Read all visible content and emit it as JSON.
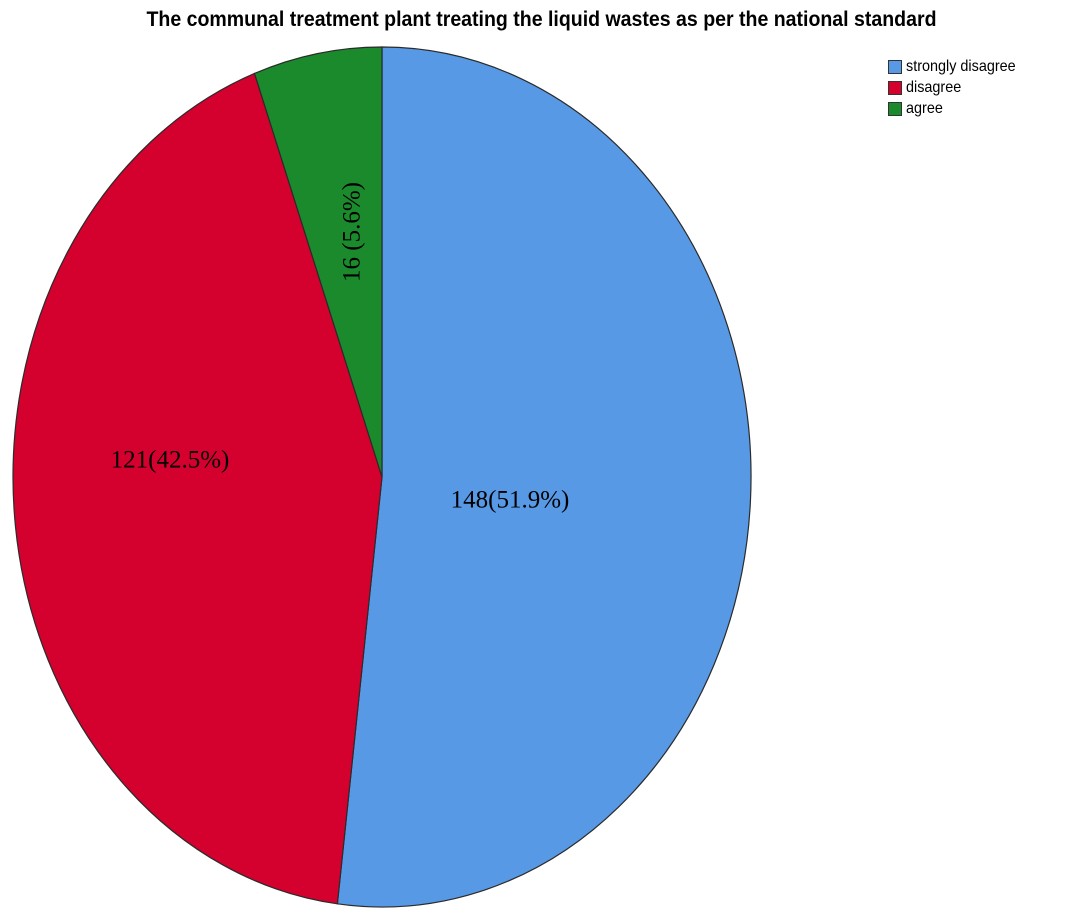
{
  "chart_data": {
    "type": "pie",
    "title": "The communal treatment plant treating the liquid wastes as per the national standard",
    "categories": [
      "strongly disagree",
      "disagree",
      "agree"
    ],
    "values": [
      148,
      121,
      16
    ],
    "labels": [
      "148(51.9%)",
      "121(42.5%)",
      "16 (5.6%)"
    ],
    "colors": [
      "#5899E6",
      "#D4002E",
      "#1B8A2C"
    ],
    "legend_position": "top-right"
  }
}
